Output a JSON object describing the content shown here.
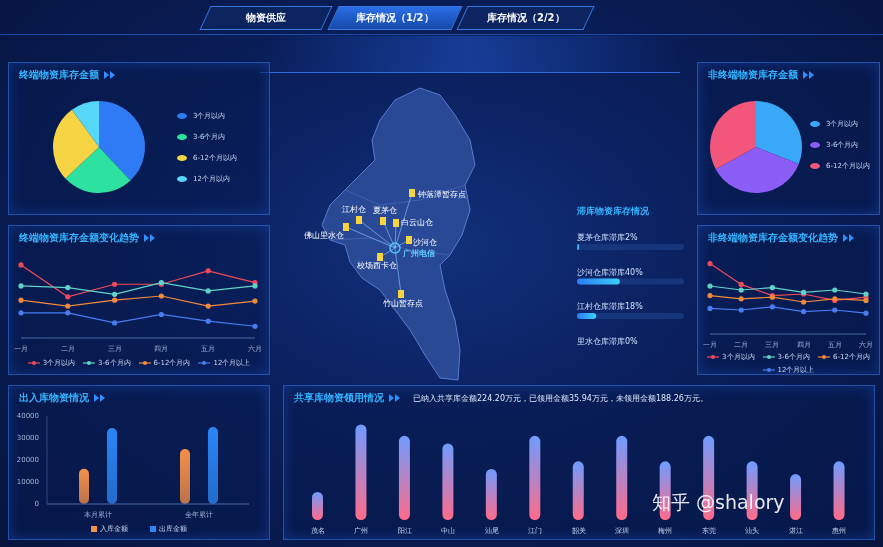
{
  "tabs": [
    "物资供应",
    "库存情况（1/2）",
    "库存情况（2/2）"
  ],
  "active_tab": "库存情况（1/2）",
  "watermark": "知乎 @shalory",
  "map": {
    "center": "广州电信",
    "points": [
      "钟落潭暂存点",
      "江村仓",
      "夏茅仓",
      "白云山仓",
      "沙河仓",
      "佛山里水仓",
      "校场西卡仓",
      "竹山暂存点"
    ]
  },
  "chart_data": [
    {
      "type": "pie",
      "title": "终端物资库存金额",
      "categories": [
        "3个月以内",
        "3-6个月内",
        "6-12个月以内",
        "12个月以内"
      ],
      "values": [
        38,
        25,
        27,
        10
      ],
      "colors": [
        "#2f7bf5",
        "#2de2a0",
        "#f6d444",
        "#56d7f7"
      ]
    },
    {
      "type": "line",
      "title": "终端物资库存金额变化趋势",
      "categories": [
        "一月",
        "二月",
        "三月",
        "四月",
        "五月",
        "六月"
      ],
      "series": [
        {
          "name": "3个月以内",
          "color": "#f04a5a",
          "values": [
            87,
            49,
            64,
            64,
            80,
            66
          ]
        },
        {
          "name": "3-6个月内",
          "color": "#5fd4c8",
          "values": [
            62,
            60,
            52,
            66,
            56,
            62
          ]
        },
        {
          "name": "6-12个月内",
          "color": "#f58a3c",
          "values": [
            45,
            38,
            45,
            50,
            38,
            44
          ]
        },
        {
          "name": "12个月以上",
          "color": "#4a7cf0",
          "values": [
            30,
            30,
            18,
            28,
            20,
            14
          ]
        }
      ],
      "ylim": [
        0,
        100
      ],
      "tick_labels": "x",
      "marker": "circle",
      "grid": false
    },
    {
      "type": "bar",
      "title": "出入库物资情况",
      "categories": [
        "本月累计",
        "全年累计"
      ],
      "series": [
        {
          "name": "入库金额",
          "color": "#f5904a",
          "values": [
            16000,
            25000
          ]
        },
        {
          "name": "出库金额",
          "color": "#2a86f5",
          "values": [
            34500,
            35000
          ]
        }
      ],
      "ylim": [
        0,
        40000
      ],
      "yticks": [
        0,
        10000,
        20000,
        30000,
        40000
      ],
      "grid": false
    },
    {
      "type": "pie",
      "title": "非终端物资库存金额",
      "categories": [
        "3个月以内",
        "3-6个月内",
        "6-12个月以内"
      ],
      "values": [
        31,
        36,
        33
      ],
      "colors": [
        "#3aa8f8",
        "#8b5cf6",
        "#f2567a"
      ]
    },
    {
      "type": "line",
      "title": "非终端物资库存金额变化趋势",
      "categories": [
        "一月",
        "二月",
        "三月",
        "四月",
        "五月",
        "六月"
      ],
      "series": [
        {
          "name": "3个月以内",
          "color": "#f04a5a",
          "values": [
            88,
            62,
            48,
            50,
            42,
            46
          ]
        },
        {
          "name": "3-6个月内",
          "color": "#5fd4c8",
          "values": [
            60,
            55,
            58,
            52,
            55,
            50
          ]
        },
        {
          "name": "6-12个月内",
          "color": "#f58a3c",
          "values": [
            48,
            44,
            46,
            40,
            44,
            42
          ]
        },
        {
          "name": "12个月以上",
          "color": "#4a7cf0",
          "values": [
            32,
            30,
            34,
            28,
            30,
            26
          ]
        }
      ],
      "ylim": [
        0,
        100
      ],
      "tick_labels": "x",
      "marker": "circle",
      "grid": false
    },
    {
      "type": "bar",
      "orientation": "horizontal",
      "title": "滞库物资库存情况",
      "categories": [
        "夏茅仓库滞库2%",
        "沙河仓库滞库40%",
        "江村仓库滞库18%",
        "里水仓库滞库0%"
      ],
      "values": [
        2,
        40,
        18,
        0
      ],
      "xlim": [
        0,
        100
      ],
      "tick_labels": false,
      "color": "#3ad0f5"
    },
    {
      "type": "bar",
      "title": "共享库物资领用情况",
      "subtitle": "已纳入共享库金额224.20万元，已领用金额35.94万元，未领用金额188.26万元。",
      "categories": [
        "茂名",
        "广州",
        "阳江",
        "中山",
        "汕尾",
        "江门",
        "韶关",
        "深圳",
        "梅州",
        "东莞",
        "汕头",
        "湛江",
        "惠州"
      ],
      "values": [
        22,
        75,
        66,
        60,
        40,
        66,
        46,
        66,
        46,
        66,
        46,
        36,
        46
      ],
      "ylim": [
        0,
        80
      ],
      "tick_labels": "x",
      "color": "#ff6b8a",
      "grid": false
    }
  ]
}
